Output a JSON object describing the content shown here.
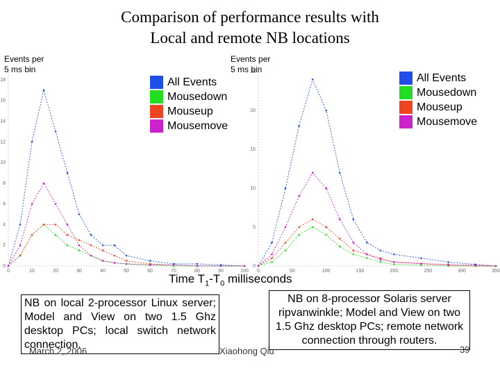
{
  "title_line1": "Comparison of performance results with",
  "title_line2": "Local and remote NB locations",
  "xlabel_main": "Time T",
  "xlabel_sub1": "1",
  "xlabel_mid": "-T",
  "xlabel_sub0": "0",
  "xlabel_end": " milliseconds",
  "left_caption": "NB on local 2-processor Linux server; Model and View on two 1.5 Ghz desktop PCs; local switch network connection.",
  "right_caption": "NB on 8-processor Solaris server ripvanwinkle; Model and View on two 1.5 Ghz desktop PCs; remote network connection through routers.",
  "footer": {
    "date": "March 2, 2006",
    "author": "Xiaohong Qiu",
    "page": "39"
  },
  "colors": {
    "all": "#1f4fe8",
    "mousedown": "#22dd22",
    "mouseup": "#ee4422",
    "mousemove": "#cc22cc"
  },
  "chart_data": [
    {
      "type": "line",
      "title": "",
      "ylabel": "Events per\n5 ms bin",
      "xlabel": "Time T1-T0 milliseconds",
      "x_ticks": [
        "0",
        "10",
        "20",
        "30",
        "40",
        "50",
        "60",
        "70",
        "80",
        "90",
        "100"
      ],
      "y_ticks": [
        "0",
        "2",
        "4",
        "6",
        "8",
        "10",
        "12",
        "14",
        "16",
        "18"
      ],
      "xlim": [
        0,
        100
      ],
      "ylim": [
        0,
        19
      ],
      "legend": [
        "All Events",
        "Mousedown",
        "Mouseup",
        "Mousemove"
      ],
      "legend_position": "top-right",
      "x": [
        0,
        5,
        10,
        15,
        20,
        25,
        30,
        35,
        40,
        45,
        50,
        60,
        70,
        80,
        90,
        100
      ],
      "series": [
        {
          "name": "All Events",
          "values": [
            0,
            4,
            12,
            17,
            13,
            9,
            5,
            3,
            2,
            2,
            1,
            0.5,
            0.2,
            0.2,
            0.1,
            0
          ]
        },
        {
          "name": "Mousedown",
          "values": [
            0,
            1,
            3,
            4,
            3,
            2,
            1.5,
            1,
            0.5,
            0.3,
            0.2,
            0.1,
            0,
            0,
            0,
            0
          ]
        },
        {
          "name": "Mouseup",
          "values": [
            0,
            1,
            3,
            4,
            4,
            3,
            2.5,
            2,
            1.5,
            1,
            0.5,
            0.2,
            0.1,
            0,
            0,
            0
          ]
        },
        {
          "name": "Mousemove",
          "values": [
            0,
            2,
            6,
            8,
            6,
            4,
            2,
            1,
            0.5,
            0.3,
            0.2,
            0.1,
            0.1,
            0,
            0,
            0
          ]
        }
      ]
    },
    {
      "type": "line",
      "title": "",
      "ylabel": "Events per\n5 ms bin",
      "xlabel": "Time T1-T0 milliseconds",
      "x_ticks": [
        "0",
        "50",
        "100",
        "150",
        "200",
        "250",
        "300",
        "350"
      ],
      "y_ticks": [
        "0",
        "5",
        "10",
        "15",
        "20",
        "25"
      ],
      "xlim": [
        0,
        350
      ],
      "ylim": [
        0,
        26
      ],
      "legend": [
        "All Events",
        "Mousedown",
        "Mouseup",
        "Mousemove"
      ],
      "legend_position": "top-right",
      "x": [
        0,
        20,
        40,
        60,
        80,
        100,
        120,
        140,
        160,
        180,
        200,
        240,
        280,
        320,
        350
      ],
      "series": [
        {
          "name": "All Events",
          "values": [
            0,
            3,
            10,
            18,
            24,
            20,
            12,
            6,
            3,
            2,
            1.5,
            1,
            0.5,
            0.2,
            0
          ]
        },
        {
          "name": "Mousedown",
          "values": [
            0,
            0.5,
            2,
            4,
            5,
            4,
            2.5,
            1.5,
            1,
            0.5,
            0.2,
            0.1,
            0,
            0,
            0
          ]
        },
        {
          "name": "Mouseup",
          "values": [
            0,
            1,
            3,
            5,
            6,
            5,
            3.5,
            2,
            1.5,
            1,
            0.5,
            0.3,
            0.1,
            0,
            0
          ]
        },
        {
          "name": "Mousemove",
          "values": [
            0,
            1.5,
            5,
            9,
            12,
            10,
            6,
            3,
            1.5,
            0.8,
            0.5,
            0.3,
            0.2,
            0.1,
            0
          ]
        }
      ]
    }
  ]
}
